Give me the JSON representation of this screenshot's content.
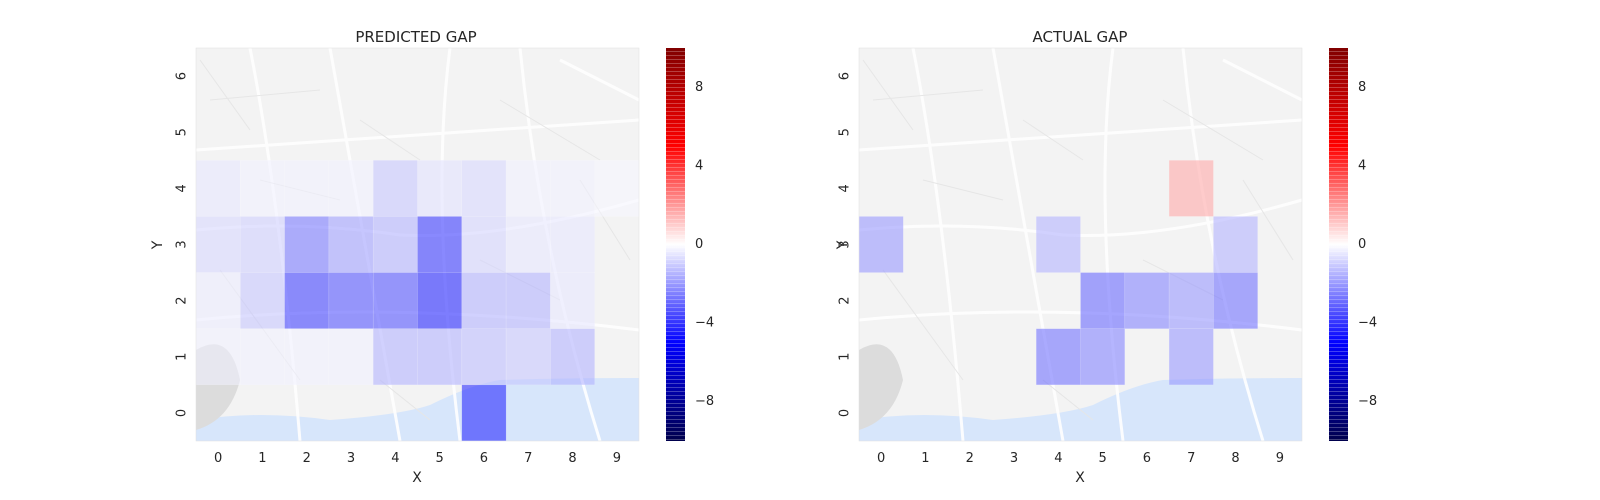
{
  "chart_data": [
    {
      "type": "heatmap",
      "title": "PREDICTED GAP",
      "xlabel": "X",
      "ylabel": "Y",
      "x_ticks": [
        "0",
        "1",
        "2",
        "3",
        "4",
        "5",
        "6",
        "7",
        "8",
        "9"
      ],
      "y_ticks": [
        "0",
        "1",
        "2",
        "3",
        "4",
        "5",
        "6"
      ],
      "colorbar": {
        "range": [
          -10,
          10
        ],
        "ticks": [
          "8",
          "4",
          "0",
          "−4",
          "−8"
        ],
        "tick_values": [
          8,
          4,
          0,
          -4,
          -8
        ],
        "colormap": "seismic"
      },
      "background": "map",
      "cells": [
        {
          "x": 0,
          "y": 4,
          "v": -0.5
        },
        {
          "x": 1,
          "y": 4,
          "v": -0.3
        },
        {
          "x": 2,
          "y": 4,
          "v": -0.3
        },
        {
          "x": 3,
          "y": 4,
          "v": -0.3
        },
        {
          "x": 4,
          "y": 4,
          "v": -1.2
        },
        {
          "x": 5,
          "y": 4,
          "v": -0.6
        },
        {
          "x": 6,
          "y": 4,
          "v": -0.8
        },
        {
          "x": 7,
          "y": 4,
          "v": -0.3
        },
        {
          "x": 8,
          "y": 4,
          "v": -0.3
        },
        {
          "x": 9,
          "y": 4,
          "v": -0.2
        },
        {
          "x": 0,
          "y": 3,
          "v": -0.8
        },
        {
          "x": 1,
          "y": 3,
          "v": -1.0
        },
        {
          "x": 2,
          "y": 3,
          "v": -2.8
        },
        {
          "x": 3,
          "y": 3,
          "v": -2.0
        },
        {
          "x": 4,
          "y": 3,
          "v": -1.6
        },
        {
          "x": 5,
          "y": 3,
          "v": -4.2
        },
        {
          "x": 6,
          "y": 3,
          "v": -0.9
        },
        {
          "x": 7,
          "y": 3,
          "v": -0.5
        },
        {
          "x": 8,
          "y": 3,
          "v": -0.5
        },
        {
          "x": 0,
          "y": 2,
          "v": -0.4
        },
        {
          "x": 1,
          "y": 2,
          "v": -1.2
        },
        {
          "x": 2,
          "y": 2,
          "v": -4.0
        },
        {
          "x": 3,
          "y": 2,
          "v": -3.6
        },
        {
          "x": 4,
          "y": 2,
          "v": -3.6
        },
        {
          "x": 5,
          "y": 2,
          "v": -4.6
        },
        {
          "x": 6,
          "y": 2,
          "v": -1.6
        },
        {
          "x": 7,
          "y": 2,
          "v": -1.6
        },
        {
          "x": 8,
          "y": 2,
          "v": -0.5
        },
        {
          "x": 0,
          "y": 1,
          "v": -0.3
        },
        {
          "x": 1,
          "y": 1,
          "v": -0.3
        },
        {
          "x": 2,
          "y": 1,
          "v": -0.3
        },
        {
          "x": 3,
          "y": 1,
          "v": -0.3
        },
        {
          "x": 4,
          "y": 1,
          "v": -1.6
        },
        {
          "x": 5,
          "y": 1,
          "v": -1.6
        },
        {
          "x": 6,
          "y": 1,
          "v": -1.4
        },
        {
          "x": 7,
          "y": 1,
          "v": -1.2
        },
        {
          "x": 8,
          "y": 1,
          "v": -1.6
        },
        {
          "x": 6,
          "y": 0,
          "v": -4.5
        }
      ]
    },
    {
      "type": "heatmap",
      "title": "ACTUAL GAP",
      "xlabel": "X",
      "ylabel": "Y",
      "x_ticks": [
        "0",
        "1",
        "2",
        "3",
        "4",
        "5",
        "6",
        "7",
        "8",
        "9"
      ],
      "y_ticks": [
        "0",
        "1",
        "2",
        "3",
        "4",
        "5",
        "6"
      ],
      "colorbar": {
        "range": [
          -10,
          10
        ],
        "ticks": [
          "8",
          "4",
          "0",
          "−4",
          "−8"
        ],
        "tick_values": [
          8,
          4,
          0,
          -4,
          -8
        ],
        "colormap": "seismic"
      },
      "background": "map",
      "cells": [
        {
          "x": 7,
          "y": 4,
          "v": 1.8
        },
        {
          "x": 0,
          "y": 3,
          "v": -2.2
        },
        {
          "x": 4,
          "y": 3,
          "v": -1.6
        },
        {
          "x": 8,
          "y": 3,
          "v": -1.6
        },
        {
          "x": 5,
          "y": 2,
          "v": -3.2
        },
        {
          "x": 6,
          "y": 2,
          "v": -2.6
        },
        {
          "x": 7,
          "y": 2,
          "v": -2.2
        },
        {
          "x": 8,
          "y": 2,
          "v": -3.0
        },
        {
          "x": 4,
          "y": 1,
          "v": -3.0
        },
        {
          "x": 5,
          "y": 1,
          "v": -2.6
        },
        {
          "x": 7,
          "y": 1,
          "v": -2.2
        }
      ]
    }
  ]
}
